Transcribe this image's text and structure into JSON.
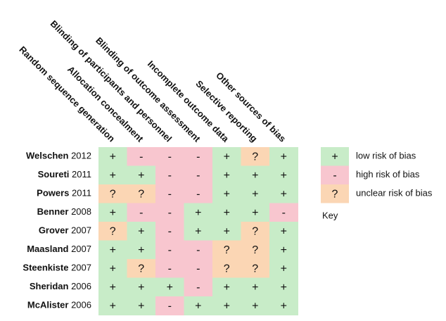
{
  "columns": [
    "Random sequence generation",
    "Allocation concealment",
    "Blinding of participants and personnel",
    "Blinding of outcome assessment",
    "Incomplete outcome data",
    "Selective reporting",
    "Other sources of bias"
  ],
  "rows": [
    {
      "study": "Welschen",
      "year": "2012",
      "cells": [
        "+",
        "-",
        "-",
        "-",
        "+",
        "?",
        "+"
      ]
    },
    {
      "study": "Soureti",
      "year": "2011",
      "cells": [
        "+",
        "+",
        "-",
        "-",
        "+",
        "+",
        "+"
      ]
    },
    {
      "study": "Powers",
      "year": "2011",
      "cells": [
        "?",
        "?",
        "-",
        "-",
        "+",
        "+",
        "+"
      ]
    },
    {
      "study": "Benner",
      "year": "2008",
      "cells": [
        "+",
        "-",
        "-",
        "+",
        "+",
        "+",
        "-"
      ]
    },
    {
      "study": "Grover",
      "year": "2007",
      "cells": [
        "?",
        "+",
        "-",
        "+",
        "+",
        "?",
        "+"
      ]
    },
    {
      "study": "Maasland",
      "year": "2007",
      "cells": [
        "+",
        "+",
        "-",
        "-",
        "?",
        "?",
        "+"
      ]
    },
    {
      "study": "Steenkiste",
      "year": "2007",
      "cells": [
        "+",
        "?",
        "-",
        "-",
        "?",
        "?",
        "+"
      ]
    },
    {
      "study": "Sheridan",
      "year": "2006",
      "cells": [
        "+",
        "+",
        "+",
        "-",
        "+",
        "+",
        "+"
      ]
    },
    {
      "study": "McAlister",
      "year": "2006",
      "cells": [
        "+",
        "+",
        "-",
        "+",
        "+",
        "+",
        "+"
      ]
    }
  ],
  "key": {
    "title": "Key",
    "items": [
      {
        "symbol": "+",
        "label": "low risk of bias",
        "fill": "#c8ecc8",
        "color": "#2f9a3a"
      },
      {
        "symbol": "-",
        "label": "high risk of bias",
        "fill": "#f8c6cf",
        "color": "#e0405e"
      },
      {
        "symbol": "?",
        "label": "unclear risk of bias",
        "fill": "#fbd6b4",
        "color": "#f09a40"
      }
    ]
  }
}
